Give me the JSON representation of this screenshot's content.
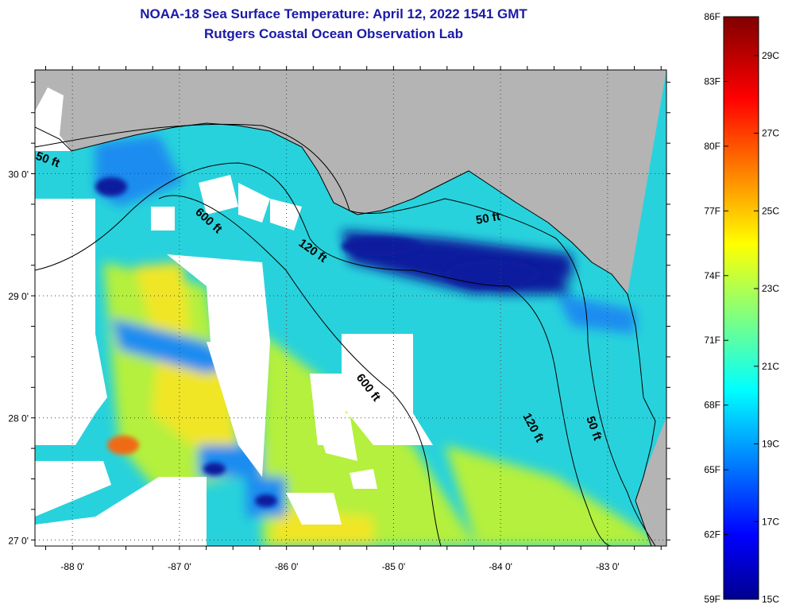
{
  "title": "NOAA-18 Sea Surface Temperature:  April 12, 2022 1541 GMT",
  "subtitle": "Rutgers Coastal Ocean Observation Lab",
  "map": {
    "lon_range": [
      -88.35,
      -82.45
    ],
    "lat_range": [
      26.95,
      30.85
    ],
    "lon_ticks": [
      -88,
      -87,
      -86,
      -85,
      -84,
      -83
    ],
    "lon_tick_labels": [
      "-88 0'",
      "-87 0'",
      "-86 0'",
      "-85 0'",
      "-84 0'",
      "-83 0'"
    ],
    "lat_ticks": [
      30,
      29,
      28,
      27
    ],
    "lat_tick_labels": [
      "30 0'",
      "29 0'",
      "28 0'",
      "27 0'"
    ],
    "grid": "dotted",
    "contour_labels": [
      "50 ft",
      "600 ft",
      "120 ft",
      "50 ft",
      "600 ft",
      "120 ft",
      "50 ft"
    ],
    "colors": {
      "land": "#b4b4b4",
      "cloud": "#ffffff",
      "sea_cold": "#0a1a9e",
      "sea_cool": "#1e8cf0",
      "sea_mid": "#28d2dc",
      "sea_warm": "#b4f03c",
      "sea_hot": "#f0e628",
      "sea_hottest": "#f06a14"
    }
  },
  "colorbar": {
    "min_f": 59,
    "max_f": 86,
    "f_labels": [
      "86F",
      "83F",
      "80F",
      "77F",
      "74F",
      "71F",
      "68F",
      "65F",
      "62F",
      "59F"
    ],
    "f_values": [
      86,
      83,
      80,
      77,
      74,
      71,
      68,
      65,
      62,
      59
    ],
    "c_labels": [
      "29C",
      "27C",
      "25C",
      "23C",
      "21C",
      "19C",
      "17C",
      "15C"
    ],
    "c_values": [
      29,
      27,
      25,
      23,
      21,
      19,
      17,
      15
    ]
  }
}
